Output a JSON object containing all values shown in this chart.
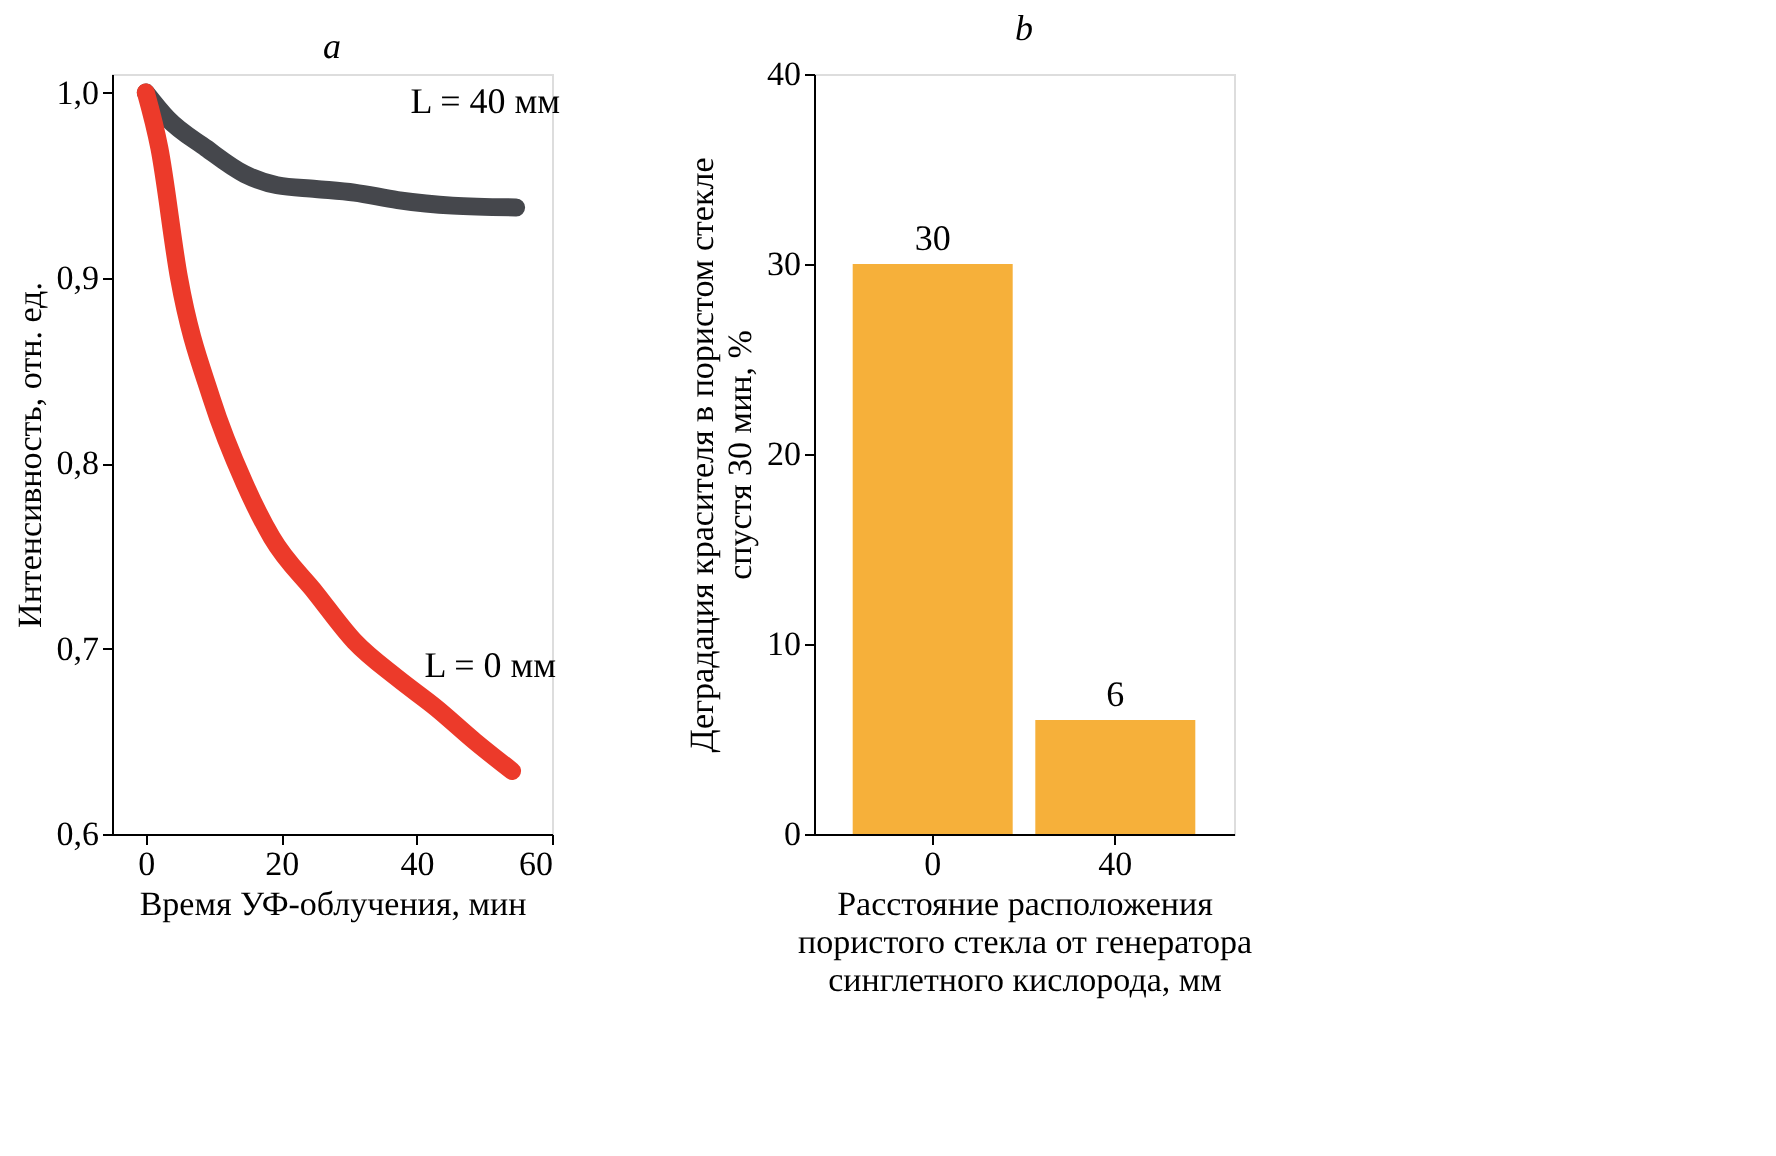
{
  "chart_data": [
    {
      "type": "line",
      "title": "a",
      "xlabel": "Время УФ-облучения, мин",
      "ylabel": "Интенсивность, отн. ед.",
      "xlim": [
        -5,
        60
      ],
      "xticks": [
        0,
        20,
        40,
        60
      ],
      "ylim": [
        0.6,
        1.01
      ],
      "yticks": [
        {
          "value": 0.6,
          "label": "0,6"
        },
        {
          "value": 0.7,
          "label": "0,7"
        },
        {
          "value": 0.8,
          "label": "0,8"
        },
        {
          "value": 0.9,
          "label": "0,9"
        },
        {
          "value": 1.0,
          "label": "1,0"
        }
      ],
      "grid": false,
      "legend": false,
      "marker": "none",
      "line_style": "solid",
      "series": [
        {
          "name": "L = 40 мм",
          "color": "#45474c",
          "x": [
            0,
            3.2,
            8.9,
            14.6,
            19.4,
            25.1,
            30.8,
            37.2,
            45.3,
            54.7
          ],
          "values": [
            1.0,
            0.986,
            0.97,
            0.956,
            0.95,
            0.948,
            0.946,
            0.942,
            0.939,
            0.938
          ]
        },
        {
          "name": "L = 0 мм",
          "color": "#ec3a2a",
          "x": [
            0,
            2,
            4.9,
            9.7,
            14.6,
            18.6,
            25.1,
            30.8,
            37.2,
            42.9,
            48.6,
            54.1
          ],
          "values": [
            1.0,
            0.97,
            0.9,
            0.835,
            0.789,
            0.76,
            0.73,
            0.704,
            0.684,
            0.668,
            0.65,
            0.634
          ]
        }
      ]
    },
    {
      "type": "bar",
      "title": "b",
      "xlabel": "Расстояние расположения пористого стекла от генератора синглетного кислорода, мм",
      "ylabel": "Деградация красителя в пористом стекле спустя 30 мин, %",
      "categories": [
        "0",
        "40"
      ],
      "values": [
        30,
        6
      ],
      "color": "#f6b03a",
      "data_labels": true,
      "ylim": [
        0,
        40
      ],
      "yticks": [
        0,
        10,
        20,
        30,
        40
      ],
      "grid": false
    }
  ]
}
